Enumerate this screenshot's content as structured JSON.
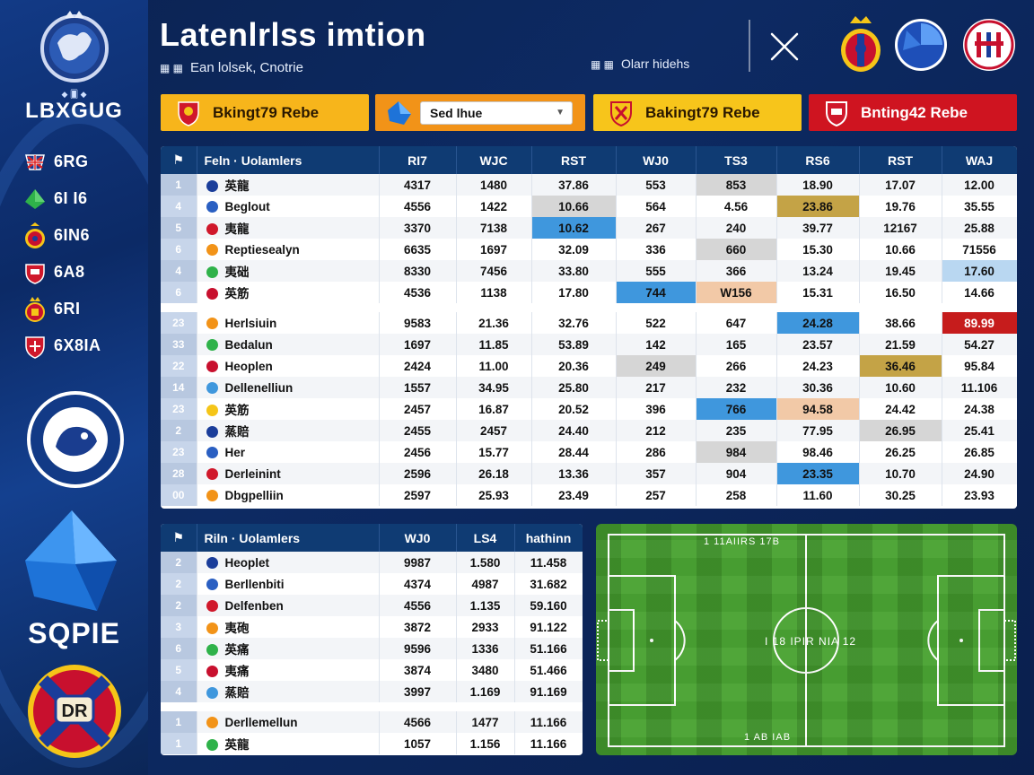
{
  "sidebar": {
    "brand_small": "◆ 🂠 ◆",
    "brand": "LBXGUG",
    "items": [
      {
        "label": "6RG",
        "icon": "union-flag-icon"
      },
      {
        "label": "6I I6",
        "icon": "green-gem-icon"
      },
      {
        "label": "6IN6",
        "icon": "red-crest-icon"
      },
      {
        "label": "6A8",
        "icon": "red-shield-icon"
      },
      {
        "label": "6RI",
        "icon": "crown-crest-icon"
      },
      {
        "label": "6X8IA",
        "icon": "red-shield-small-icon"
      }
    ],
    "crystal_word": "SQPIE"
  },
  "header": {
    "title": "Latenlrlss imtion",
    "subtitle": "Ean lolsek, Cnotrie",
    "right_text": "Olarr hidehs"
  },
  "tabs": [
    {
      "label": "Bkingt79 Rebe"
    },
    {
      "select_value": "Sed lhue"
    },
    {
      "label": "Bakingt79 Rebe"
    },
    {
      "label": "Bnting42 Rebe"
    }
  ],
  "main_table": {
    "headers": [
      "Feln · Uolamlers",
      "RI7",
      "WJC",
      "RST",
      "WJ0",
      "TS3",
      "RS6",
      "RST",
      "WAJ"
    ],
    "group1": [
      {
        "rank": "1",
        "name": "英龍",
        "cells": [
          "4317",
          "1480",
          "37.86",
          "553",
          "853",
          "18.90",
          "17.07",
          "12.00"
        ]
      },
      {
        "rank": "4",
        "name": "Beglout",
        "cells": [
          "4556",
          "1422",
          "10.66",
          "564",
          "4.56",
          "23.86",
          "19.76",
          "35.55"
        ]
      },
      {
        "rank": "5",
        "name": "夷龍",
        "cells": [
          "3370",
          "7138",
          "10.62",
          "267",
          "240",
          "39.77",
          "12167",
          "25.88"
        ]
      },
      {
        "rank": "6",
        "name": "Reptiesealyn",
        "cells": [
          "6635",
          "1697",
          "32.09",
          "336",
          "660",
          "15.30",
          "10.66",
          "71556"
        ]
      },
      {
        "rank": "4",
        "name": "夷础",
        "cells": [
          "8330",
          "7456",
          "33.80",
          "555",
          "366",
          "13.24",
          "19.45",
          "17.60"
        ]
      },
      {
        "rank": "6",
        "name": "英筋",
        "cells": [
          "4536",
          "1138",
          "17.80",
          "744",
          "W156",
          "15.31",
          "16.50",
          "14.66"
        ]
      }
    ],
    "group2": [
      {
        "rank": "23",
        "name": "Herlsiuin",
        "cells": [
          "9583",
          "21.36",
          "32.76",
          "522",
          "647",
          "24.28",
          "38.66",
          "89.99"
        ]
      },
      {
        "rank": "33",
        "name": "Bedalun",
        "cells": [
          "1697",
          "11.85",
          "53.89",
          "142",
          "165",
          "23.57",
          "21.59",
          "54.27"
        ]
      },
      {
        "rank": "22",
        "name": "Heoplen",
        "cells": [
          "2424",
          "11.00",
          "20.36",
          "249",
          "266",
          "24.23",
          "36.46",
          "95.84"
        ]
      },
      {
        "rank": "14",
        "name": "Dellenelliun",
        "cells": [
          "1557",
          "34.95",
          "25.80",
          "217",
          "232",
          "30.36",
          "10.60",
          "11.106"
        ]
      },
      {
        "rank": "23",
        "name": "英筋",
        "cells": [
          "2457",
          "16.87",
          "20.52",
          "396",
          "766",
          "94.58",
          "24.42",
          "24.38"
        ]
      },
      {
        "rank": "2",
        "name": "蒸賠",
        "cells": [
          "2455",
          "2457",
          "24.40",
          "212",
          "235",
          "77.95",
          "26.95",
          "25.41"
        ]
      },
      {
        "rank": "23",
        "name": "Her",
        "cells": [
          "2456",
          "15.77",
          "28.44",
          "286",
          "984",
          "98.46",
          "26.25",
          "26.85"
        ]
      },
      {
        "rank": "28",
        "name": "Derleinint",
        "cells": [
          "2596",
          "26.18",
          "13.36",
          "357",
          "904",
          "23.35",
          "10.70",
          "24.90"
        ]
      },
      {
        "rank": "00",
        "name": "Dbgpelliin",
        "cells": [
          "2597",
          "25.93",
          "23.49",
          "257",
          "258",
          "11.60",
          "30.25",
          "23.93"
        ]
      }
    ]
  },
  "small_table": {
    "headers": [
      "Riln · Uolamlers",
      "WJ0",
      "LS4",
      "hathinn"
    ],
    "group1": [
      {
        "rank": "2",
        "name": "Heoplet",
        "cells": [
          "9987",
          "1.580",
          "11.458"
        ]
      },
      {
        "rank": "2",
        "name": "Berllenbiti",
        "cells": [
          "4374",
          "4987",
          "31.682"
        ]
      },
      {
        "rank": "2",
        "name": "Delfenben",
        "cells": [
          "4556",
          "1.135",
          "59.160"
        ]
      },
      {
        "rank": "3",
        "name": "夷砲",
        "cells": [
          "3872",
          "2933",
          "91.122"
        ]
      },
      {
        "rank": "6",
        "name": "英痛",
        "cells": [
          "9596",
          "1336",
          "51.166"
        ]
      },
      {
        "rank": "5",
        "name": "夷痛",
        "cells": [
          "3874",
          "3480",
          "51.466"
        ]
      },
      {
        "rank": "4",
        "name": "蒸賠",
        "cells": [
          "3997",
          "1.169",
          "91.169"
        ]
      }
    ],
    "group2": [
      {
        "rank": "1",
        "name": "Derllemellun",
        "cells": [
          "4566",
          "1477",
          "11.166"
        ]
      },
      {
        "rank": "1",
        "name": "英龍",
        "cells": [
          "1057",
          "1.156",
          "11.166"
        ]
      }
    ]
  },
  "pitch": {
    "top_text": "1 11AIIRS 17B",
    "center_text": "I 18 IPIR NIA 12",
    "bottom_text": "1 AB IAB"
  },
  "colors": {
    "header_blue": "#0f3b73",
    "highlight_blue": "#3f97dd",
    "highlight_gold": "#c4a346",
    "highlight_red": "#c61c1c",
    "tab_orange": "#f29318",
    "tab_yellow": "#f7b51b",
    "tab_red": "#cf1420"
  }
}
